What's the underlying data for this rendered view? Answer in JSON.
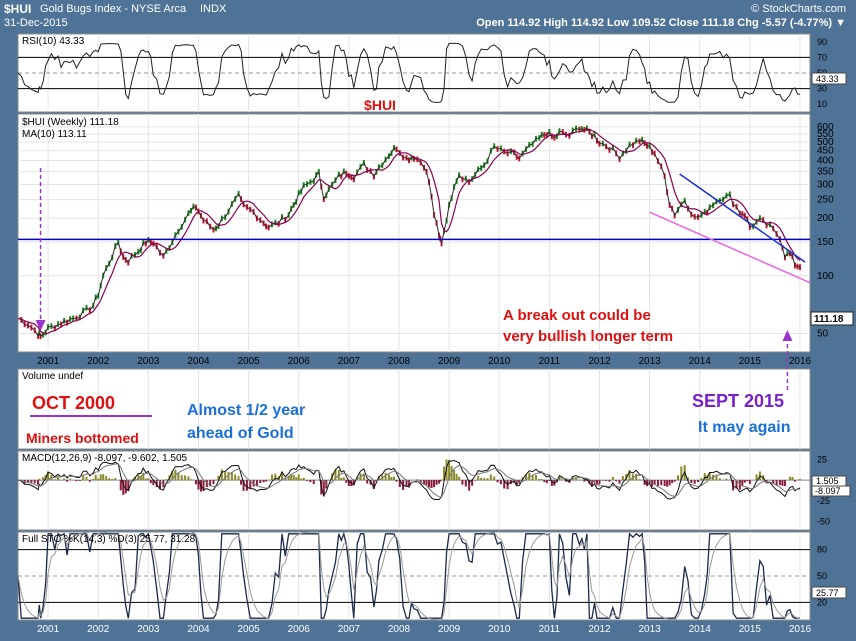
{
  "header": {
    "symbol": "$HUI",
    "name": "Gold Bugs Index - NYSE Arca",
    "exchange": "INDX",
    "date": "31-Dec-2015",
    "copyright": "© StockCharts.com",
    "ohlc": "Open 114.92  High 114.92  Low 109.52  Close 111.18  Chg -5.57 (-4.77%) ▼"
  },
  "colors": {
    "panel_bg": "#ffffff",
    "frame": "#4f7396",
    "price_line": "#2d2d2d",
    "ma_line": "#8b0050",
    "support_line": "#0000cc",
    "trend_line_blue": "#1a2fd0",
    "trend_line_pink": "#ee66dd",
    "arrow": "#9933cc",
    "annotation_red": "#e01010",
    "annotation_blue": "#1a6fd8",
    "annotation_purple": "#7a22c9"
  },
  "annotations": {
    "center_title": "$HUI",
    "breakout_1": "A break out could be",
    "breakout_2": "very bullish longer term",
    "oct_2000": "OCT 2000",
    "miners_bottomed": "Miners bottomed",
    "half_year_1": "Almost 1/2 year",
    "half_year_2": "ahead of Gold",
    "sept_2015": "SEPT 2015",
    "may_again": "It may again"
  },
  "chart_data": [
    {
      "type": "line",
      "panel": "rsi",
      "legend": "RSI(10) 43.33",
      "y_ticks": [
        90,
        70,
        50,
        30,
        10
      ],
      "ylim": [
        0,
        100
      ],
      "levels": [
        70,
        30
      ],
      "last_value": 43.33,
      "last_label": "43.33"
    },
    {
      "type": "line",
      "panel": "price",
      "legend_price": "$HUI (Weekly) 111.18",
      "legend_ma": "MA(10) 113.11",
      "scale": "log",
      "y_ticks": [
        50,
        100,
        150,
        200,
        250,
        300,
        350,
        400,
        450,
        500,
        550,
        600
      ],
      "x_ticks": [
        "2001",
        "2002",
        "2003",
        "2004",
        "2005",
        "2006",
        "2007",
        "2008",
        "2009",
        "2010",
        "2011",
        "2012",
        "2013",
        "2014",
        "2015",
        "2016"
      ],
      "xlim": [
        2000.4,
        2016.2
      ],
      "ylim": [
        40,
        700
      ],
      "last_label": "111.18",
      "support_level": 155,
      "series": [
        {
          "x": [
            2000.4,
            2000.6,
            2000.8,
            2000.85,
            2001.0,
            2001.2,
            2001.5,
            2001.7,
            2001.9,
            2002.0,
            2002.1,
            2002.4,
            2002.5,
            2002.6,
            2002.8,
            2002.95,
            2003.1,
            2003.3,
            2003.6,
            2003.8,
            2003.95,
            2004.1,
            2004.3,
            2004.4,
            2004.6,
            2004.8,
            2004.9,
            2005.1,
            2005.3,
            2005.4,
            2005.6,
            2005.8,
            2005.95,
            2006.1,
            2006.3,
            2006.4,
            2006.5,
            2006.6,
            2006.8,
            2006.95,
            2007.1,
            2007.3,
            2007.5,
            2007.6,
            2007.8,
            2007.95,
            2008.15,
            2008.3,
            2008.5,
            2008.6,
            2008.7,
            2008.8,
            2008.85,
            2008.95,
            2009.1,
            2009.2,
            2009.4,
            2009.7,
            2009.9,
            2010.1,
            2010.3,
            2010.4,
            2010.6,
            2010.8,
            2010.95,
            2011.1,
            2011.2,
            2011.4,
            2011.6,
            2011.75,
            2011.9,
            2012.0,
            2012.2,
            2012.4,
            2012.6,
            2012.8,
            2012.95,
            2013.1,
            2013.3,
            2013.4,
            2013.5,
            2013.7,
            2013.9,
            2014.1,
            2014.2,
            2014.4,
            2014.6,
            2014.8,
            2014.9,
            2015.0,
            2015.2,
            2015.4,
            2015.6,
            2015.7,
            2015.8,
            2015.9,
            2016.0
          ],
          "values": [
            60,
            56,
            50,
            48,
            53,
            56,
            60,
            64,
            70,
            80,
            100,
            150,
            125,
            120,
            135,
            150,
            150,
            125,
            175,
            210,
            230,
            195,
            175,
            185,
            220,
            260,
            230,
            215,
            190,
            180,
            190,
            210,
            250,
            290,
            320,
            340,
            260,
            280,
            330,
            350,
            330,
            380,
            340,
            370,
            430,
            470,
            410,
            420,
            380,
            310,
            210,
            160,
            150,
            200,
            300,
            340,
            310,
            380,
            470,
            440,
            430,
            410,
            470,
            520,
            560,
            520,
            560,
            540,
            600,
            570,
            540,
            500,
            470,
            420,
            480,
            510,
            480,
            440,
            330,
            240,
            210,
            250,
            200,
            210,
            230,
            255,
            260,
            215,
            210,
            180,
            195,
            180,
            160,
            128,
            130,
            115,
            111
          ]
        }
      ]
    },
    {
      "type": "bar",
      "panel": "volume",
      "legend": "Volume undef"
    },
    {
      "type": "line",
      "panel": "macd",
      "legend": "MACD(12,26,9) -8.097, -9.602, 1.505",
      "y_ticks": [
        25,
        0,
        -25,
        -50
      ],
      "ylim": [
        -60,
        35
      ],
      "last_labels": [
        "1.505",
        "-8.097"
      ]
    },
    {
      "type": "line",
      "panel": "stochastic",
      "legend": "Full STO %K(14,3) %D(3) 25.77, 31.28",
      "y_ticks": [
        80,
        50,
        20
      ],
      "ylim": [
        0,
        100
      ],
      "levels": [
        80,
        50,
        20
      ],
      "last_label": "25.77",
      "x_ticks": [
        "2001",
        "2002",
        "2003",
        "2004",
        "2005",
        "2006",
        "2007",
        "2008",
        "2009",
        "2010",
        "2011",
        "2012",
        "2013",
        "2014",
        "2015",
        "2016"
      ]
    }
  ]
}
